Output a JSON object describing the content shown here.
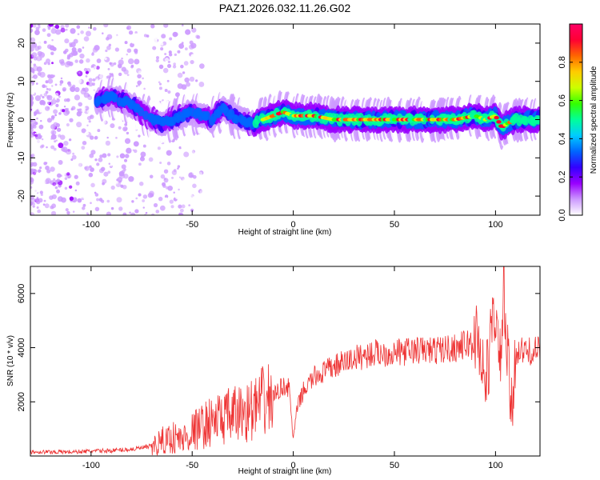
{
  "chart_data": [
    {
      "type": "heatmap",
      "title": "PAZ1.2026.032.11.26.G02",
      "xlabel": "Height of straight line (km)",
      "ylabel": "Frequency (Hz)",
      "xlim": [
        -130,
        122
      ],
      "ylim": [
        -25,
        25
      ],
      "xticks": [
        -100,
        -50,
        0,
        50,
        100
      ],
      "yticks": [
        -20,
        -10,
        0,
        10,
        20
      ],
      "ridge": {
        "x": [
          -97,
          -90,
          -85,
          -80,
          -75,
          -70,
          -65,
          -60,
          -55,
          -50,
          -45,
          -40,
          -35,
          -30,
          -25,
          -20,
          -15,
          -10,
          -5,
          0,
          10,
          20,
          30,
          40,
          50,
          60,
          70,
          80,
          90,
          95,
          100,
          103,
          106,
          110,
          115,
          122
        ],
        "y": [
          5,
          6,
          5,
          4,
          2,
          0,
          -1,
          0,
          1,
          2,
          1,
          0,
          3,
          1,
          0,
          -1,
          0,
          1,
          2,
          1,
          1,
          0,
          0,
          0,
          0,
          0,
          0,
          0,
          1,
          0,
          1,
          -2,
          -1,
          0,
          0,
          0
        ]
      },
      "colorbar": {
        "label": "Normalized spectral amplitude",
        "range": [
          0.0,
          1.0
        ],
        "ticks": [
          "0.0",
          "0.2",
          "0.4",
          "0.6",
          "0.8"
        ],
        "colormap": [
          "#ffffff",
          "#cc99ff",
          "#9900ff",
          "#3300ff",
          "#0066ff",
          "#00ccff",
          "#00ff99",
          "#33ff00",
          "#ccff00",
          "#ffcc00",
          "#ff6600",
          "#ff0033",
          "#ff0066"
        ]
      }
    },
    {
      "type": "line",
      "xlabel": "Height of straight line (km)",
      "ylabel": "SNR (10 * v/v)",
      "xlim": [
        -130,
        122
      ],
      "ylim": [
        0,
        7000
      ],
      "xticks": [
        -100,
        -50,
        0,
        50,
        100
      ],
      "yticks": [
        2000,
        4000,
        6000
      ],
      "color": "#ee3333",
      "series": [
        {
          "name": "SNR",
          "x": [
            -130,
            -110,
            -90,
            -80,
            -70,
            -60,
            -55,
            -50,
            -45,
            -40,
            -35,
            -30,
            -25,
            -20,
            -15,
            -10,
            -5,
            -2,
            0,
            2,
            5,
            10,
            20,
            30,
            40,
            50,
            60,
            70,
            80,
            85,
            88,
            90,
            93,
            95,
            98,
            100,
            102,
            104,
            106,
            108,
            110,
            115,
            122
          ],
          "y": [
            150,
            150,
            200,
            250,
            350,
            700,
            600,
            900,
            1100,
            1300,
            1400,
            1500,
            1600,
            1700,
            2000,
            2200,
            2600,
            2500,
            600,
            1800,
            2400,
            2900,
            3300,
            3600,
            3800,
            3800,
            3900,
            3900,
            4000,
            4100,
            4200,
            4500,
            3800,
            2500,
            4500,
            5500,
            3000,
            6000,
            3500,
            1500,
            3900,
            3850,
            3900
          ]
        }
      ]
    }
  ]
}
